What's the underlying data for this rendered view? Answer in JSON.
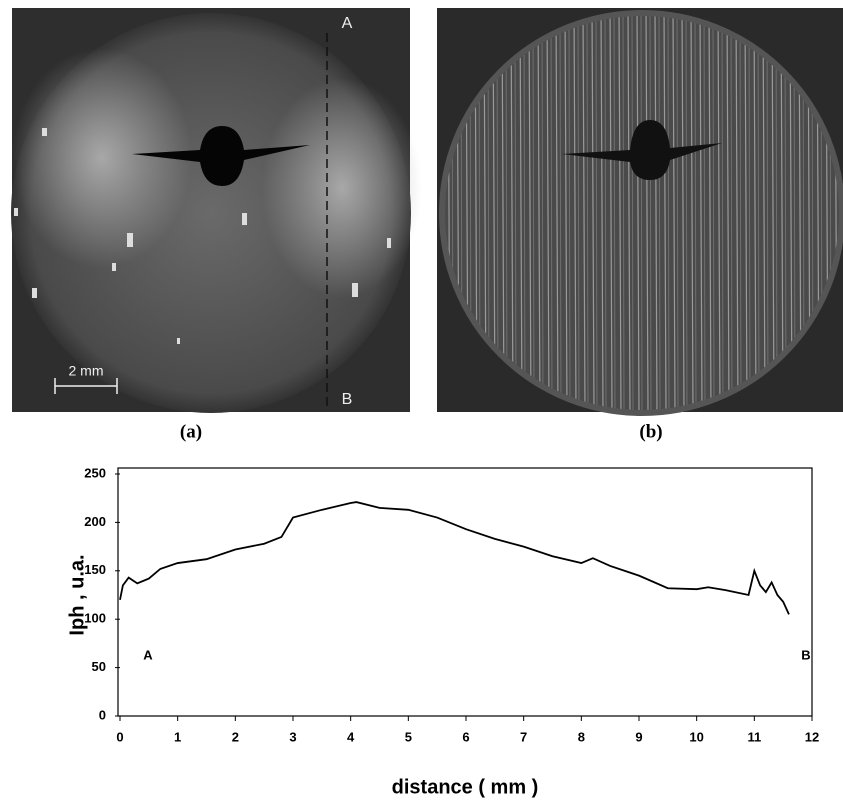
{
  "panels": [
    {
      "caption": "(a)",
      "top_label": "A",
      "bottom_label": "B",
      "scale_bar": "2 mm"
    },
    {
      "caption": "(b)"
    }
  ],
  "chart_data": {
    "type": "line",
    "x_label": "distance ( mm )",
    "y_label": "Iph , u.a.",
    "annotations": [
      "A",
      "B"
    ],
    "x": [
      0,
      0.05,
      0.15,
      0.3,
      0.5,
      0.7,
      1,
      1.5,
      2,
      2.5,
      2.8,
      3,
      3.5,
      4,
      4.1,
      4.5,
      5,
      5.5,
      6,
      6.5,
      7,
      7.5,
      8,
      8.2,
      8.5,
      9,
      9.5,
      10,
      10.2,
      10.5,
      10.9,
      11,
      11.1,
      11.2,
      11.3,
      11.4,
      11.5,
      11.6
    ],
    "values": [
      120,
      135,
      143,
      137,
      142,
      152,
      158,
      162,
      172,
      178,
      185,
      205,
      213,
      220,
      221,
      215,
      213,
      205,
      193,
      183,
      175,
      165,
      158,
      163,
      155,
      145,
      132,
      131,
      133,
      130,
      125,
      150,
      135,
      128,
      138,
      125,
      118,
      105
    ],
    "color": "#000000",
    "xlim": [
      0,
      12
    ],
    "ylim": [
      0,
      250
    ],
    "xticks": [
      0,
      1,
      2,
      3,
      4,
      5,
      6,
      7,
      8,
      9,
      10,
      11,
      12
    ],
    "yticks": [
      0,
      50,
      100,
      150,
      200,
      250
    ],
    "grid": false
  }
}
